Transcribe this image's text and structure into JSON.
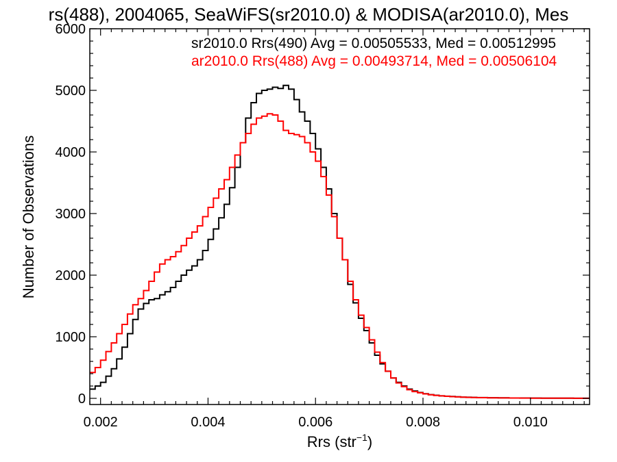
{
  "chart_data": {
    "type": "line",
    "title": "rs(488), 2004065, SeaWiFS(sr2010.0) & MODISA(ar2010.0), Mes",
    "xlabel_main": "Rrs (str",
    "xlabel_sup": "−1",
    "xlabel_end": ")",
    "ylabel": "Number of Observations",
    "xlim": [
      0.0018,
      0.0111
    ],
    "ylim": [
      -100,
      6000
    ],
    "xticks": [
      {
        "value": 0.002,
        "label": "0.002"
      },
      {
        "value": 0.004,
        "label": "0.004"
      },
      {
        "value": 0.006,
        "label": "0.006"
      },
      {
        "value": 0.008,
        "label": "0.008"
      },
      {
        "value": 0.01,
        "label": "0.010"
      }
    ],
    "yticks": [
      {
        "value": 0,
        "label": "0"
      },
      {
        "value": 1000,
        "label": "1000"
      },
      {
        "value": 2000,
        "label": "2000"
      },
      {
        "value": 3000,
        "label": "3000"
      },
      {
        "value": 4000,
        "label": "4000"
      },
      {
        "value": 5000,
        "label": "5000"
      },
      {
        "value": 6000,
        "label": "6000"
      }
    ],
    "legend": [
      {
        "text": "sr2010.0 Rrs(490) Avg = 0.00505533, Med = 0.00512995",
        "color": "#000000"
      },
      {
        "text": "ar2010.0 Rrs(488) Avg = 0.00493714, Med = 0.00506104",
        "color": "#ff0000"
      }
    ],
    "series": [
      {
        "color": "#000000",
        "x": [
          0.0018,
          0.0019,
          0.002,
          0.0021,
          0.0022,
          0.0023,
          0.0024,
          0.0025,
          0.0026,
          0.0027,
          0.0028,
          0.0029,
          0.003,
          0.0031,
          0.0032,
          0.0033,
          0.0034,
          0.0035,
          0.0036,
          0.0037,
          0.0038,
          0.0039,
          0.004,
          0.0041,
          0.0042,
          0.0043,
          0.0044,
          0.0045,
          0.0046,
          0.0047,
          0.0048,
          0.0049,
          0.005,
          0.0051,
          0.0052,
          0.0053,
          0.0054,
          0.0055,
          0.0056,
          0.0057,
          0.0058,
          0.0059,
          0.006,
          0.0061,
          0.0062,
          0.0063,
          0.0064,
          0.0065,
          0.0066,
          0.0067,
          0.0068,
          0.0069,
          0.007,
          0.0071,
          0.0072,
          0.0073,
          0.0074,
          0.0075,
          0.0076,
          0.0077,
          0.0078,
          0.0079,
          0.008,
          0.0081,
          0.0082,
          0.0083,
          0.0084,
          0.0085,
          0.0086,
          0.0087,
          0.0088,
          0.0089,
          0.009,
          0.0092,
          0.0094,
          0.0096,
          0.0098,
          0.01,
          0.0102,
          0.0104,
          0.0106,
          0.0108,
          0.011
        ],
        "y": [
          150,
          200,
          260,
          360,
          480,
          640,
          830,
          1050,
          1280,
          1450,
          1540,
          1600,
          1620,
          1680,
          1730,
          1800,
          1900,
          2000,
          2080,
          2150,
          2250,
          2400,
          2580,
          2750,
          2930,
          3150,
          3420,
          3750,
          4150,
          4550,
          4800,
          4950,
          5000,
          5020,
          5050,
          5030,
          5080,
          5020,
          4850,
          4650,
          4500,
          4300,
          4050,
          3750,
          3400,
          3000,
          2600,
          2250,
          1850,
          1550,
          1300,
          1100,
          900,
          700,
          560,
          440,
          330,
          260,
          200,
          150,
          120,
          95,
          75,
          60,
          50,
          40,
          35,
          30,
          25,
          20,
          18,
          15,
          12,
          10,
          8,
          6,
          5,
          4,
          3,
          2,
          2,
          1,
          1
        ]
      },
      {
        "color": "#ff0000",
        "x": [
          0.0018,
          0.0019,
          0.002,
          0.0021,
          0.0022,
          0.0023,
          0.0024,
          0.0025,
          0.0026,
          0.0027,
          0.0028,
          0.0029,
          0.003,
          0.0031,
          0.0032,
          0.0033,
          0.0034,
          0.0035,
          0.0036,
          0.0037,
          0.0038,
          0.0039,
          0.004,
          0.0041,
          0.0042,
          0.0043,
          0.0044,
          0.0045,
          0.0046,
          0.0047,
          0.0048,
          0.0049,
          0.005,
          0.0051,
          0.0052,
          0.0053,
          0.0054,
          0.0055,
          0.0056,
          0.0057,
          0.0058,
          0.0059,
          0.006,
          0.0061,
          0.0062,
          0.0063,
          0.0064,
          0.0065,
          0.0066,
          0.0067,
          0.0068,
          0.0069,
          0.007,
          0.0071,
          0.0072,
          0.0073,
          0.0074,
          0.0075,
          0.0076,
          0.0077,
          0.0078,
          0.0079,
          0.008,
          0.0081,
          0.0082,
          0.0083,
          0.0084,
          0.0085,
          0.0086,
          0.0087,
          0.0088,
          0.0089,
          0.009,
          0.0092,
          0.0094,
          0.0096,
          0.0098,
          0.01,
          0.0102,
          0.0104,
          0.0106,
          0.0108,
          0.011
        ],
        "y": [
          420,
          500,
          620,
          760,
          900,
          1050,
          1200,
          1370,
          1520,
          1620,
          1750,
          1900,
          2050,
          2180,
          2250,
          2300,
          2380,
          2480,
          2600,
          2700,
          2800,
          2950,
          3100,
          3250,
          3400,
          3550,
          3750,
          3950,
          4150,
          4300,
          4450,
          4550,
          4580,
          4620,
          4600,
          4500,
          4350,
          4300,
          4280,
          4250,
          4150,
          4000,
          3850,
          3600,
          3300,
          2950,
          2600,
          2250,
          1900,
          1600,
          1350,
          1150,
          950,
          750,
          580,
          440,
          330,
          250,
          190,
          140,
          110,
          90,
          72,
          58,
          48,
          40,
          33,
          28,
          23,
          19,
          16,
          13,
          11,
          9,
          7,
          5,
          4,
          3,
          3,
          2,
          2,
          1,
          1
        ]
      }
    ]
  }
}
